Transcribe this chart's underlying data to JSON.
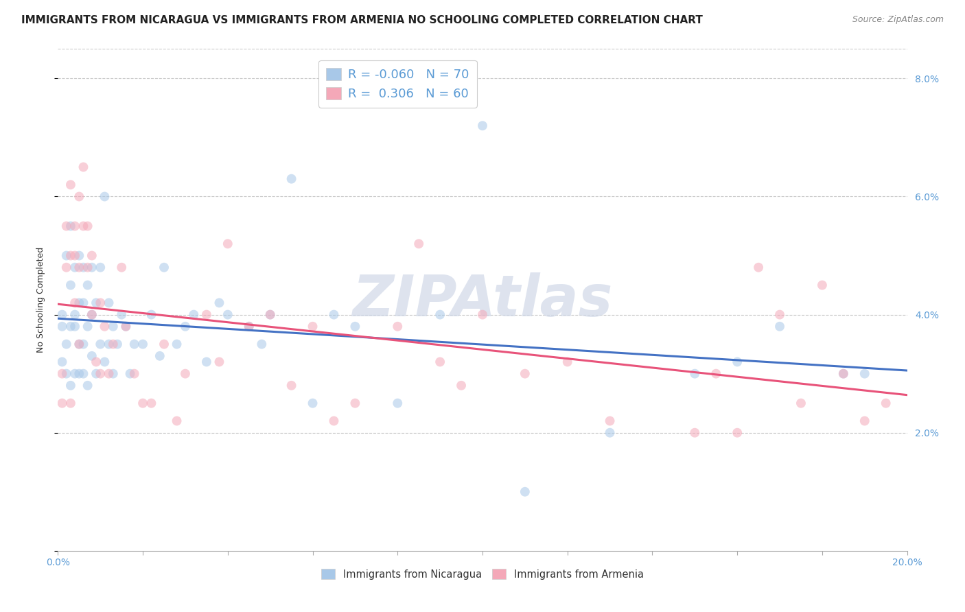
{
  "title": "IMMIGRANTS FROM NICARAGUA VS IMMIGRANTS FROM ARMENIA NO SCHOOLING COMPLETED CORRELATION CHART",
  "source": "Source: ZipAtlas.com",
  "ylabel": "No Schooling Completed",
  "xlim": [
    0.0,
    0.2
  ],
  "ylim": [
    0.0,
    0.085
  ],
  "ytick_labels_right": [
    "2.0%",
    "4.0%",
    "6.0%",
    "8.0%"
  ],
  "nicaragua_color": "#a8c8e8",
  "armenia_color": "#f4a8b8",
  "nicaragua_line_color": "#4472c4",
  "armenia_line_color": "#e8537a",
  "R_nicaragua": -0.06,
  "N_nicaragua": 70,
  "R_armenia": 0.306,
  "N_armenia": 60,
  "nicaragua_x": [
    0.001,
    0.001,
    0.001,
    0.002,
    0.002,
    0.002,
    0.003,
    0.003,
    0.003,
    0.003,
    0.004,
    0.004,
    0.004,
    0.004,
    0.005,
    0.005,
    0.005,
    0.005,
    0.006,
    0.006,
    0.006,
    0.006,
    0.007,
    0.007,
    0.007,
    0.008,
    0.008,
    0.008,
    0.009,
    0.009,
    0.01,
    0.01,
    0.011,
    0.011,
    0.012,
    0.012,
    0.013,
    0.013,
    0.014,
    0.015,
    0.016,
    0.017,
    0.018,
    0.02,
    0.022,
    0.024,
    0.025,
    0.028,
    0.03,
    0.032,
    0.035,
    0.038,
    0.04,
    0.045,
    0.048,
    0.05,
    0.055,
    0.06,
    0.065,
    0.07,
    0.08,
    0.09,
    0.1,
    0.11,
    0.13,
    0.15,
    0.16,
    0.17,
    0.185,
    0.19
  ],
  "nicaragua_y": [
    0.032,
    0.038,
    0.04,
    0.03,
    0.035,
    0.05,
    0.028,
    0.038,
    0.045,
    0.055,
    0.03,
    0.038,
    0.04,
    0.048,
    0.03,
    0.035,
    0.042,
    0.05,
    0.03,
    0.035,
    0.042,
    0.048,
    0.028,
    0.038,
    0.045,
    0.033,
    0.04,
    0.048,
    0.03,
    0.042,
    0.035,
    0.048,
    0.032,
    0.06,
    0.035,
    0.042,
    0.03,
    0.038,
    0.035,
    0.04,
    0.038,
    0.03,
    0.035,
    0.035,
    0.04,
    0.033,
    0.048,
    0.035,
    0.038,
    0.04,
    0.032,
    0.042,
    0.04,
    0.038,
    0.035,
    0.04,
    0.063,
    0.025,
    0.04,
    0.038,
    0.025,
    0.04,
    0.072,
    0.01,
    0.02,
    0.03,
    0.032,
    0.038,
    0.03,
    0.03
  ],
  "armenia_x": [
    0.001,
    0.001,
    0.002,
    0.002,
    0.003,
    0.003,
    0.003,
    0.004,
    0.004,
    0.004,
    0.005,
    0.005,
    0.005,
    0.006,
    0.006,
    0.007,
    0.007,
    0.008,
    0.008,
    0.009,
    0.01,
    0.01,
    0.011,
    0.012,
    0.013,
    0.015,
    0.016,
    0.018,
    0.02,
    0.022,
    0.025,
    0.028,
    0.03,
    0.035,
    0.038,
    0.04,
    0.045,
    0.05,
    0.055,
    0.06,
    0.065,
    0.07,
    0.08,
    0.085,
    0.09,
    0.095,
    0.1,
    0.11,
    0.12,
    0.13,
    0.15,
    0.155,
    0.16,
    0.165,
    0.17,
    0.175,
    0.18,
    0.185,
    0.19,
    0.195
  ],
  "armenia_y": [
    0.025,
    0.03,
    0.048,
    0.055,
    0.025,
    0.05,
    0.062,
    0.042,
    0.05,
    0.055,
    0.048,
    0.035,
    0.06,
    0.055,
    0.065,
    0.048,
    0.055,
    0.05,
    0.04,
    0.032,
    0.03,
    0.042,
    0.038,
    0.03,
    0.035,
    0.048,
    0.038,
    0.03,
    0.025,
    0.025,
    0.035,
    0.022,
    0.03,
    0.04,
    0.032,
    0.052,
    0.038,
    0.04,
    0.028,
    0.038,
    0.022,
    0.025,
    0.038,
    0.052,
    0.032,
    0.028,
    0.04,
    0.03,
    0.032,
    0.022,
    0.02,
    0.03,
    0.02,
    0.048,
    0.04,
    0.025,
    0.045,
    0.03,
    0.022,
    0.025
  ],
  "background_color": "#ffffff",
  "grid_color": "#c8c8c8",
  "title_fontsize": 11,
  "axis_label_fontsize": 9,
  "tick_fontsize": 10,
  "legend_fontsize": 13,
  "marker_size": 100,
  "marker_alpha": 0.55,
  "watermark_text": "ZIPAtlas",
  "watermark_color": "#d0d8e8",
  "watermark_fontsize": 60
}
